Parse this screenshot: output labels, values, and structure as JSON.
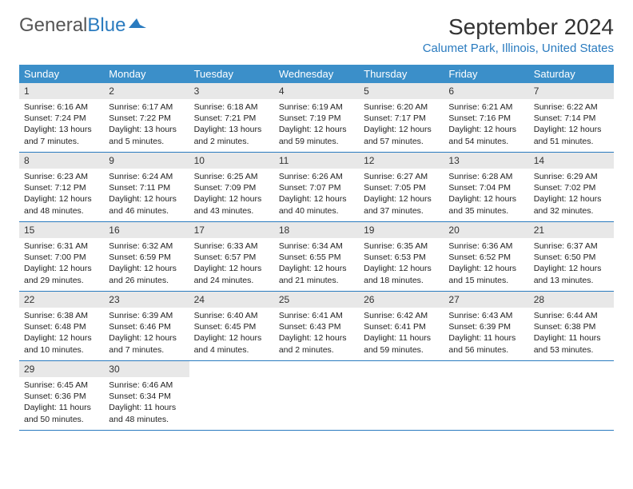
{
  "logo": {
    "text1": "General",
    "text2": "Blue"
  },
  "title": "September 2024",
  "location": "Calumet Park, Illinois, United States",
  "daysOfWeek": [
    "Sunday",
    "Monday",
    "Tuesday",
    "Wednesday",
    "Thursday",
    "Friday",
    "Saturday"
  ],
  "colors": {
    "headerBg": "#3b8fc9",
    "accent": "#2a7bbf",
    "dayNumBg": "#e8e8e8",
    "text": "#222222"
  },
  "weeks": [
    [
      {
        "num": "1",
        "sunrise": "Sunrise: 6:16 AM",
        "sunset": "Sunset: 7:24 PM",
        "daylight": "Daylight: 13 hours and 7 minutes."
      },
      {
        "num": "2",
        "sunrise": "Sunrise: 6:17 AM",
        "sunset": "Sunset: 7:22 PM",
        "daylight": "Daylight: 13 hours and 5 minutes."
      },
      {
        "num": "3",
        "sunrise": "Sunrise: 6:18 AM",
        "sunset": "Sunset: 7:21 PM",
        "daylight": "Daylight: 13 hours and 2 minutes."
      },
      {
        "num": "4",
        "sunrise": "Sunrise: 6:19 AM",
        "sunset": "Sunset: 7:19 PM",
        "daylight": "Daylight: 12 hours and 59 minutes."
      },
      {
        "num": "5",
        "sunrise": "Sunrise: 6:20 AM",
        "sunset": "Sunset: 7:17 PM",
        "daylight": "Daylight: 12 hours and 57 minutes."
      },
      {
        "num": "6",
        "sunrise": "Sunrise: 6:21 AM",
        "sunset": "Sunset: 7:16 PM",
        "daylight": "Daylight: 12 hours and 54 minutes."
      },
      {
        "num": "7",
        "sunrise": "Sunrise: 6:22 AM",
        "sunset": "Sunset: 7:14 PM",
        "daylight": "Daylight: 12 hours and 51 minutes."
      }
    ],
    [
      {
        "num": "8",
        "sunrise": "Sunrise: 6:23 AM",
        "sunset": "Sunset: 7:12 PM",
        "daylight": "Daylight: 12 hours and 48 minutes."
      },
      {
        "num": "9",
        "sunrise": "Sunrise: 6:24 AM",
        "sunset": "Sunset: 7:11 PM",
        "daylight": "Daylight: 12 hours and 46 minutes."
      },
      {
        "num": "10",
        "sunrise": "Sunrise: 6:25 AM",
        "sunset": "Sunset: 7:09 PM",
        "daylight": "Daylight: 12 hours and 43 minutes."
      },
      {
        "num": "11",
        "sunrise": "Sunrise: 6:26 AM",
        "sunset": "Sunset: 7:07 PM",
        "daylight": "Daylight: 12 hours and 40 minutes."
      },
      {
        "num": "12",
        "sunrise": "Sunrise: 6:27 AM",
        "sunset": "Sunset: 7:05 PM",
        "daylight": "Daylight: 12 hours and 37 minutes."
      },
      {
        "num": "13",
        "sunrise": "Sunrise: 6:28 AM",
        "sunset": "Sunset: 7:04 PM",
        "daylight": "Daylight: 12 hours and 35 minutes."
      },
      {
        "num": "14",
        "sunrise": "Sunrise: 6:29 AM",
        "sunset": "Sunset: 7:02 PM",
        "daylight": "Daylight: 12 hours and 32 minutes."
      }
    ],
    [
      {
        "num": "15",
        "sunrise": "Sunrise: 6:31 AM",
        "sunset": "Sunset: 7:00 PM",
        "daylight": "Daylight: 12 hours and 29 minutes."
      },
      {
        "num": "16",
        "sunrise": "Sunrise: 6:32 AM",
        "sunset": "Sunset: 6:59 PM",
        "daylight": "Daylight: 12 hours and 26 minutes."
      },
      {
        "num": "17",
        "sunrise": "Sunrise: 6:33 AM",
        "sunset": "Sunset: 6:57 PM",
        "daylight": "Daylight: 12 hours and 24 minutes."
      },
      {
        "num": "18",
        "sunrise": "Sunrise: 6:34 AM",
        "sunset": "Sunset: 6:55 PM",
        "daylight": "Daylight: 12 hours and 21 minutes."
      },
      {
        "num": "19",
        "sunrise": "Sunrise: 6:35 AM",
        "sunset": "Sunset: 6:53 PM",
        "daylight": "Daylight: 12 hours and 18 minutes."
      },
      {
        "num": "20",
        "sunrise": "Sunrise: 6:36 AM",
        "sunset": "Sunset: 6:52 PM",
        "daylight": "Daylight: 12 hours and 15 minutes."
      },
      {
        "num": "21",
        "sunrise": "Sunrise: 6:37 AM",
        "sunset": "Sunset: 6:50 PM",
        "daylight": "Daylight: 12 hours and 13 minutes."
      }
    ],
    [
      {
        "num": "22",
        "sunrise": "Sunrise: 6:38 AM",
        "sunset": "Sunset: 6:48 PM",
        "daylight": "Daylight: 12 hours and 10 minutes."
      },
      {
        "num": "23",
        "sunrise": "Sunrise: 6:39 AM",
        "sunset": "Sunset: 6:46 PM",
        "daylight": "Daylight: 12 hours and 7 minutes."
      },
      {
        "num": "24",
        "sunrise": "Sunrise: 6:40 AM",
        "sunset": "Sunset: 6:45 PM",
        "daylight": "Daylight: 12 hours and 4 minutes."
      },
      {
        "num": "25",
        "sunrise": "Sunrise: 6:41 AM",
        "sunset": "Sunset: 6:43 PM",
        "daylight": "Daylight: 12 hours and 2 minutes."
      },
      {
        "num": "26",
        "sunrise": "Sunrise: 6:42 AM",
        "sunset": "Sunset: 6:41 PM",
        "daylight": "Daylight: 11 hours and 59 minutes."
      },
      {
        "num": "27",
        "sunrise": "Sunrise: 6:43 AM",
        "sunset": "Sunset: 6:39 PM",
        "daylight": "Daylight: 11 hours and 56 minutes."
      },
      {
        "num": "28",
        "sunrise": "Sunrise: 6:44 AM",
        "sunset": "Sunset: 6:38 PM",
        "daylight": "Daylight: 11 hours and 53 minutes."
      }
    ],
    [
      {
        "num": "29",
        "sunrise": "Sunrise: 6:45 AM",
        "sunset": "Sunset: 6:36 PM",
        "daylight": "Daylight: 11 hours and 50 minutes."
      },
      {
        "num": "30",
        "sunrise": "Sunrise: 6:46 AM",
        "sunset": "Sunset: 6:34 PM",
        "daylight": "Daylight: 11 hours and 48 minutes."
      },
      null,
      null,
      null,
      null,
      null
    ]
  ]
}
